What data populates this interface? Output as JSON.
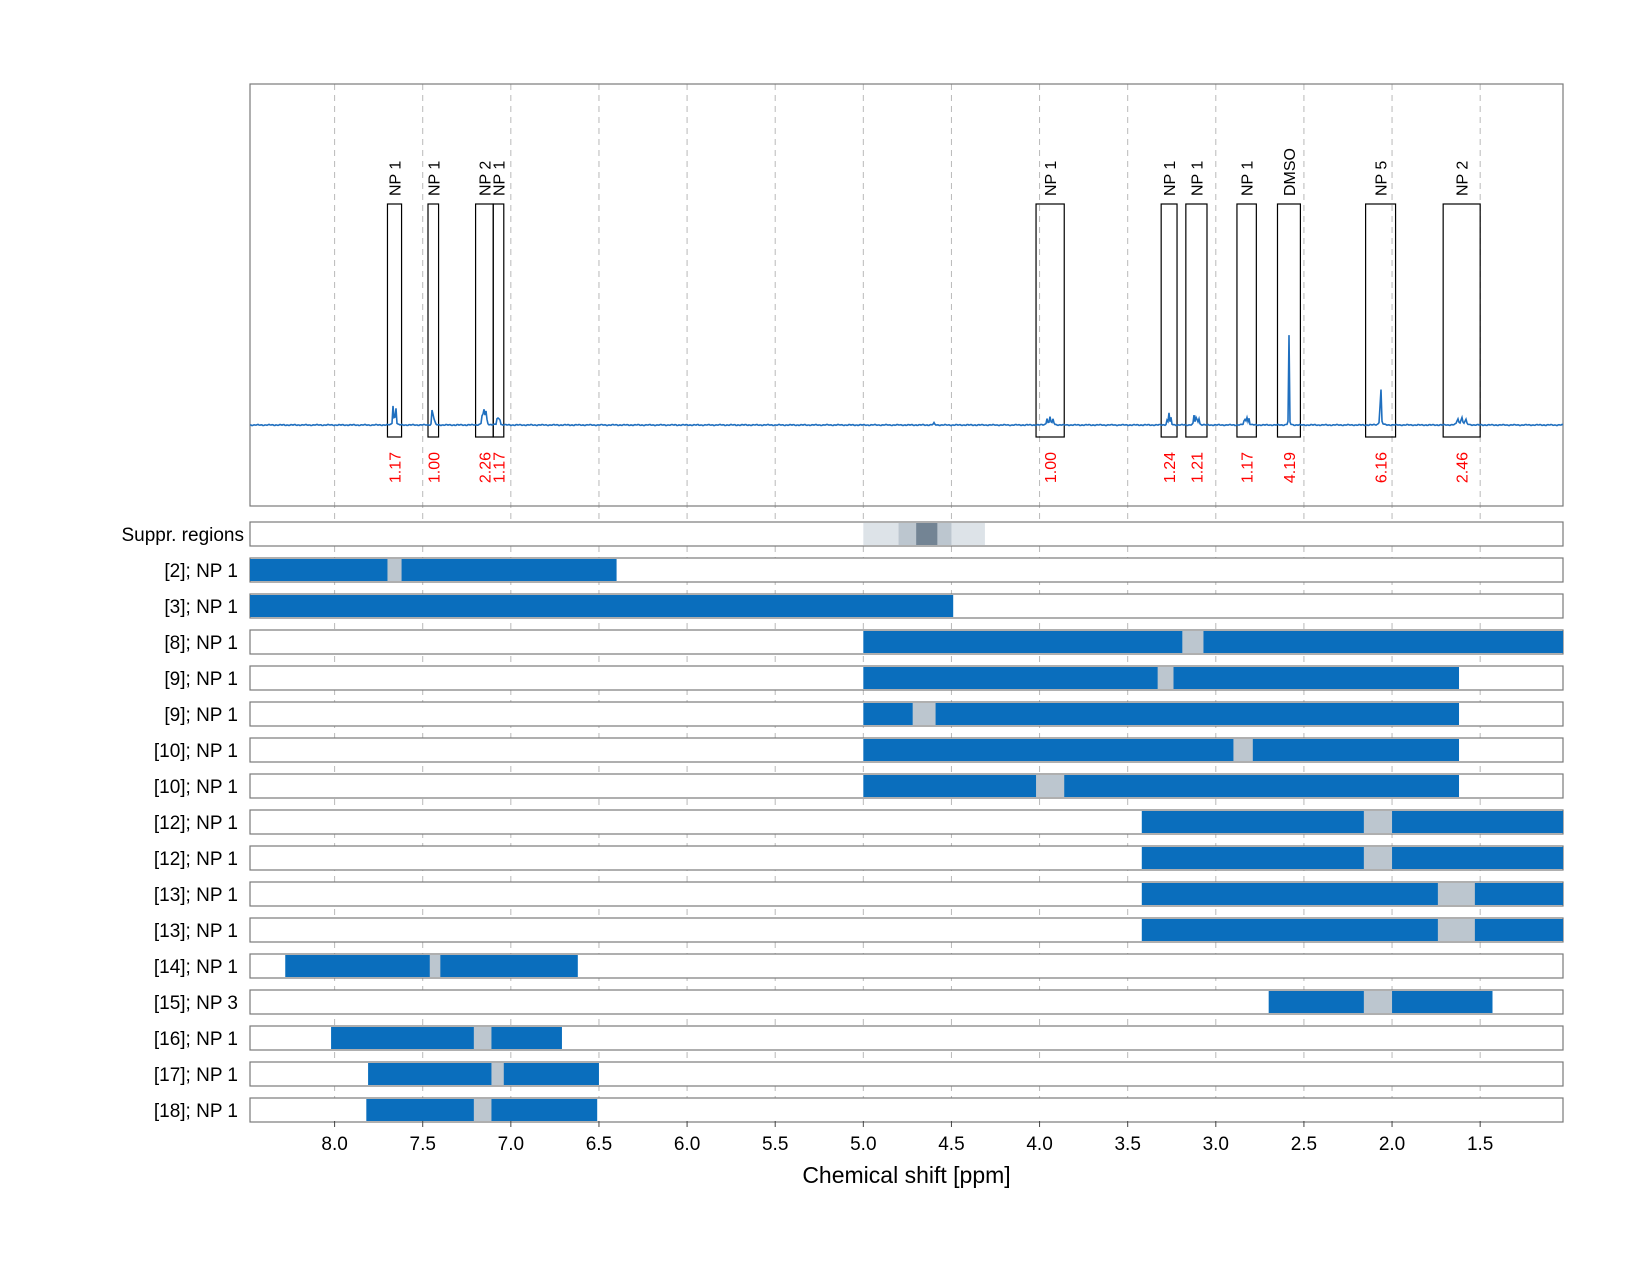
{
  "chart_data": {
    "type": "line",
    "xlabel": "Chemical shift [ppm]",
    "x_reversed": true,
    "xlim": [
      8.48,
      1.03
    ],
    "x_ticks": [
      "8.0",
      "7.5",
      "7.0",
      "6.5",
      "6.0",
      "5.5",
      "5.0",
      "4.5",
      "4.0",
      "3.5",
      "3.0",
      "2.5",
      "2.0",
      "1.5"
    ],
    "grid": true,
    "colors": {
      "spectrum": "#1f6fbf",
      "bar": "#0a6ebd",
      "gap": "#bcc6cf",
      "integral": "#ff0000",
      "suppr_light": "#dde3e8",
      "suppr_mid": "#bcc6cf",
      "suppr_dark": "#738494"
    },
    "peaks": [
      {
        "label": "NP 1",
        "from": 7.7,
        "to": 7.62,
        "integral": "1.17",
        "height": 0.11
      },
      {
        "label": "NP 1",
        "from": 7.47,
        "to": 7.41,
        "integral": "1.00",
        "height": 0.12
      },
      {
        "label": "NP 2",
        "from": 7.2,
        "to": 7.1,
        "integral": "2.26",
        "height": 0.14
      },
      {
        "label": "NP 1",
        "from": 7.1,
        "to": 7.04,
        "integral": "1.17",
        "height": 0.12
      },
      {
        "label": "NP 1",
        "from": 4.02,
        "to": 3.86,
        "integral": "1.00",
        "height": 0.04
      },
      {
        "label": "NP 1",
        "from": 3.31,
        "to": 3.22,
        "integral": "1.24",
        "height": 0.06
      },
      {
        "label": "NP 1",
        "from": 3.17,
        "to": 3.05,
        "integral": "1.21",
        "height": 0.06
      },
      {
        "label": "NP 1",
        "from": 2.88,
        "to": 2.77,
        "integral": "1.17",
        "height": 0.06
      },
      {
        "label": "DMSO",
        "from": 2.65,
        "to": 2.52,
        "integral": "4.19",
        "height": 0.46
      },
      {
        "label": "NP 5",
        "from": 2.15,
        "to": 1.98,
        "integral": "6.16",
        "height": 1.0
      },
      {
        "label": "NP 2",
        "from": 1.71,
        "to": 1.5,
        "integral": "2.46",
        "height": 0.04
      }
    ],
    "suppression_label": "Suppr. regions",
    "suppression_regions": [
      {
        "from": 5.0,
        "to": 4.31,
        "level": "light"
      },
      {
        "from": 4.8,
        "to": 4.5,
        "level": "mid"
      },
      {
        "from": 4.7,
        "to": 4.58,
        "level": "dark"
      }
    ],
    "rows": [
      {
        "label": "[2]; NP 1",
        "from": 8.48,
        "to": 6.4,
        "gap_from": 7.7,
        "gap_to": 7.62
      },
      {
        "label": "[3]; NP 1",
        "from": 8.48,
        "to": 4.49
      },
      {
        "label": "[8]; NP 1",
        "from": 5.0,
        "to": 1.03,
        "gap_from": 3.19,
        "gap_to": 3.07
      },
      {
        "label": "[9]; NP 1",
        "from": 5.0,
        "to": 1.62,
        "gap_from": 3.33,
        "gap_to": 3.24
      },
      {
        "label": "[9]; NP 1",
        "from": 5.0,
        "to": 1.62,
        "gap_from": 4.72,
        "gap_to": 4.59
      },
      {
        "label": "[10]; NP 1",
        "from": 5.0,
        "to": 1.62,
        "gap_from": 2.9,
        "gap_to": 2.79
      },
      {
        "label": "[10]; NP 1",
        "from": 5.0,
        "to": 1.62,
        "gap_from": 4.02,
        "gap_to": 3.86
      },
      {
        "label": "[12]; NP 1",
        "from": 3.42,
        "to": 1.03,
        "gap_from": 2.16,
        "gap_to": 2.0
      },
      {
        "label": "[12]; NP 1",
        "from": 3.42,
        "to": 1.03,
        "gap_from": 2.16,
        "gap_to": 2.0
      },
      {
        "label": "[13]; NP 1",
        "from": 3.42,
        "to": 1.03,
        "gap_from": 1.74,
        "gap_to": 1.53
      },
      {
        "label": "[13]; NP 1",
        "from": 3.42,
        "to": 1.03,
        "gap_from": 1.74,
        "gap_to": 1.53
      },
      {
        "label": "[14]; NP 1",
        "from": 8.28,
        "to": 6.62,
        "gap_from": 7.46,
        "gap_to": 7.4
      },
      {
        "label": "[15]; NP 3",
        "from": 2.7,
        "to": 1.43,
        "gap_from": 2.16,
        "gap_to": 2.0
      },
      {
        "label": "[16]; NP 1",
        "from": 8.02,
        "to": 6.71,
        "gap_from": 7.21,
        "gap_to": 7.11
      },
      {
        "label": "[17]; NP 1",
        "from": 7.81,
        "to": 6.5,
        "gap_from": 7.11,
        "gap_to": 7.04
      },
      {
        "label": "[18]; NP 1",
        "from": 7.82,
        "to": 6.51,
        "gap_from": 7.21,
        "gap_to": 7.11
      }
    ]
  }
}
